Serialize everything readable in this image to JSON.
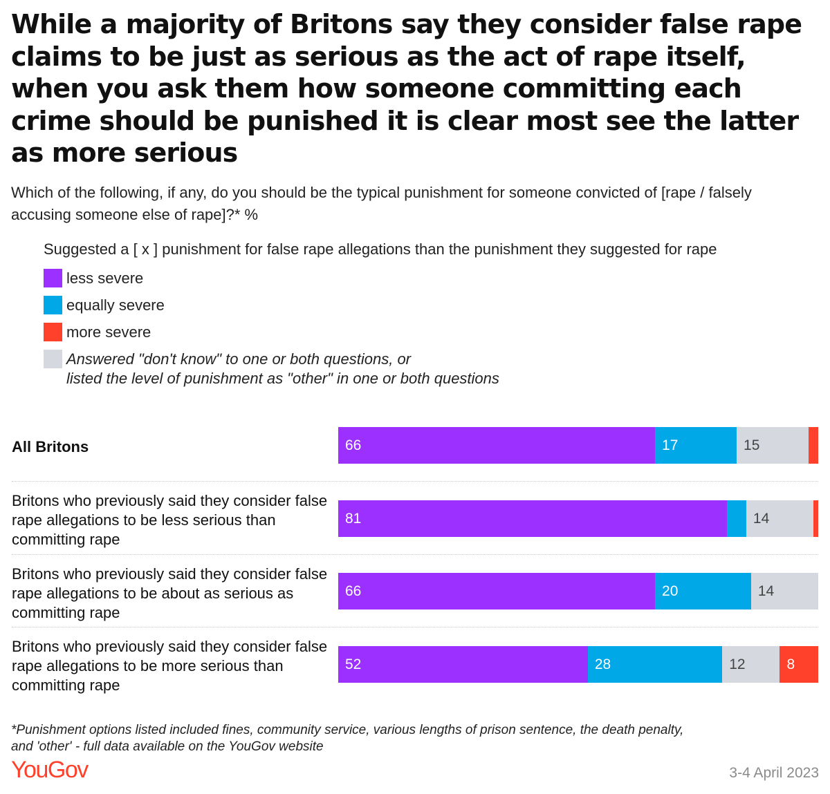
{
  "title": "While a majority of Britons say they consider false rape claims to be just as serious as the act of rape itself, when you ask them how someone committing each crime should be punished it is clear most see the latter as more serious",
  "subtitle": "Which of the following, if any, do you should be the typical punishment for someone convicted of [rape / falsely accusing someone else of rape]?* %",
  "legend": {
    "title": "Suggested a [ x ] punishment for false rape allegations than the punishment they suggested for rape",
    "items": [
      {
        "label": "less severe",
        "color": "#9b30ff"
      },
      {
        "label": "equally severe",
        "color": "#00a8e8"
      },
      {
        "label": "more severe",
        "color": "#ff412c"
      },
      {
        "label_line1": "Answered \"don't know\" to one or both questions, or",
        "label_line2": "listed the level of punishment as \"other\" in one or both questions",
        "color": "#d5d8de"
      }
    ]
  },
  "chart_data": {
    "type": "bar",
    "orientation": "horizontal",
    "stacked": true,
    "unit": "%",
    "categories": [
      "All Britons",
      "Britons who previously said they consider false rape allegations to be less serious than committing rape",
      "Britons who previously said they consider false rape allegations to be about as serious as committing rape",
      "Britons who previously said they consider false rape allegations to be more serious than committing rape"
    ],
    "series": [
      {
        "name": "less severe",
        "color": "#9b30ff",
        "values": [
          66,
          81,
          66,
          52
        ],
        "labels": [
          "66",
          "81",
          "66",
          "52"
        ]
      },
      {
        "name": "equally severe",
        "color": "#00a8e8",
        "values": [
          17,
          4,
          20,
          28
        ],
        "labels": [
          "17",
          "",
          "20",
          "28"
        ]
      },
      {
        "name": "Answered \"don't know\" to one or both questions, or listed the level of punishment as \"other\" in one or both questions",
        "color": "#d5d8de",
        "values": [
          15,
          14,
          14,
          12
        ],
        "labels": [
          "15",
          "14",
          "14",
          "12"
        ]
      },
      {
        "name": "more severe",
        "color": "#ff412c",
        "values": [
          2,
          1,
          0,
          8
        ],
        "labels": [
          "",
          "",
          "",
          "8"
        ]
      }
    ],
    "xlim": [
      0,
      100
    ]
  },
  "footnote_line1": "*Punishment options listed included fines, community service, various lengths of prison sentence, the death penalty,",
  "footnote_line2": "and 'other' - full data available on the YouGov website",
  "brand": "YouGov",
  "date": "3-4 April 2023"
}
